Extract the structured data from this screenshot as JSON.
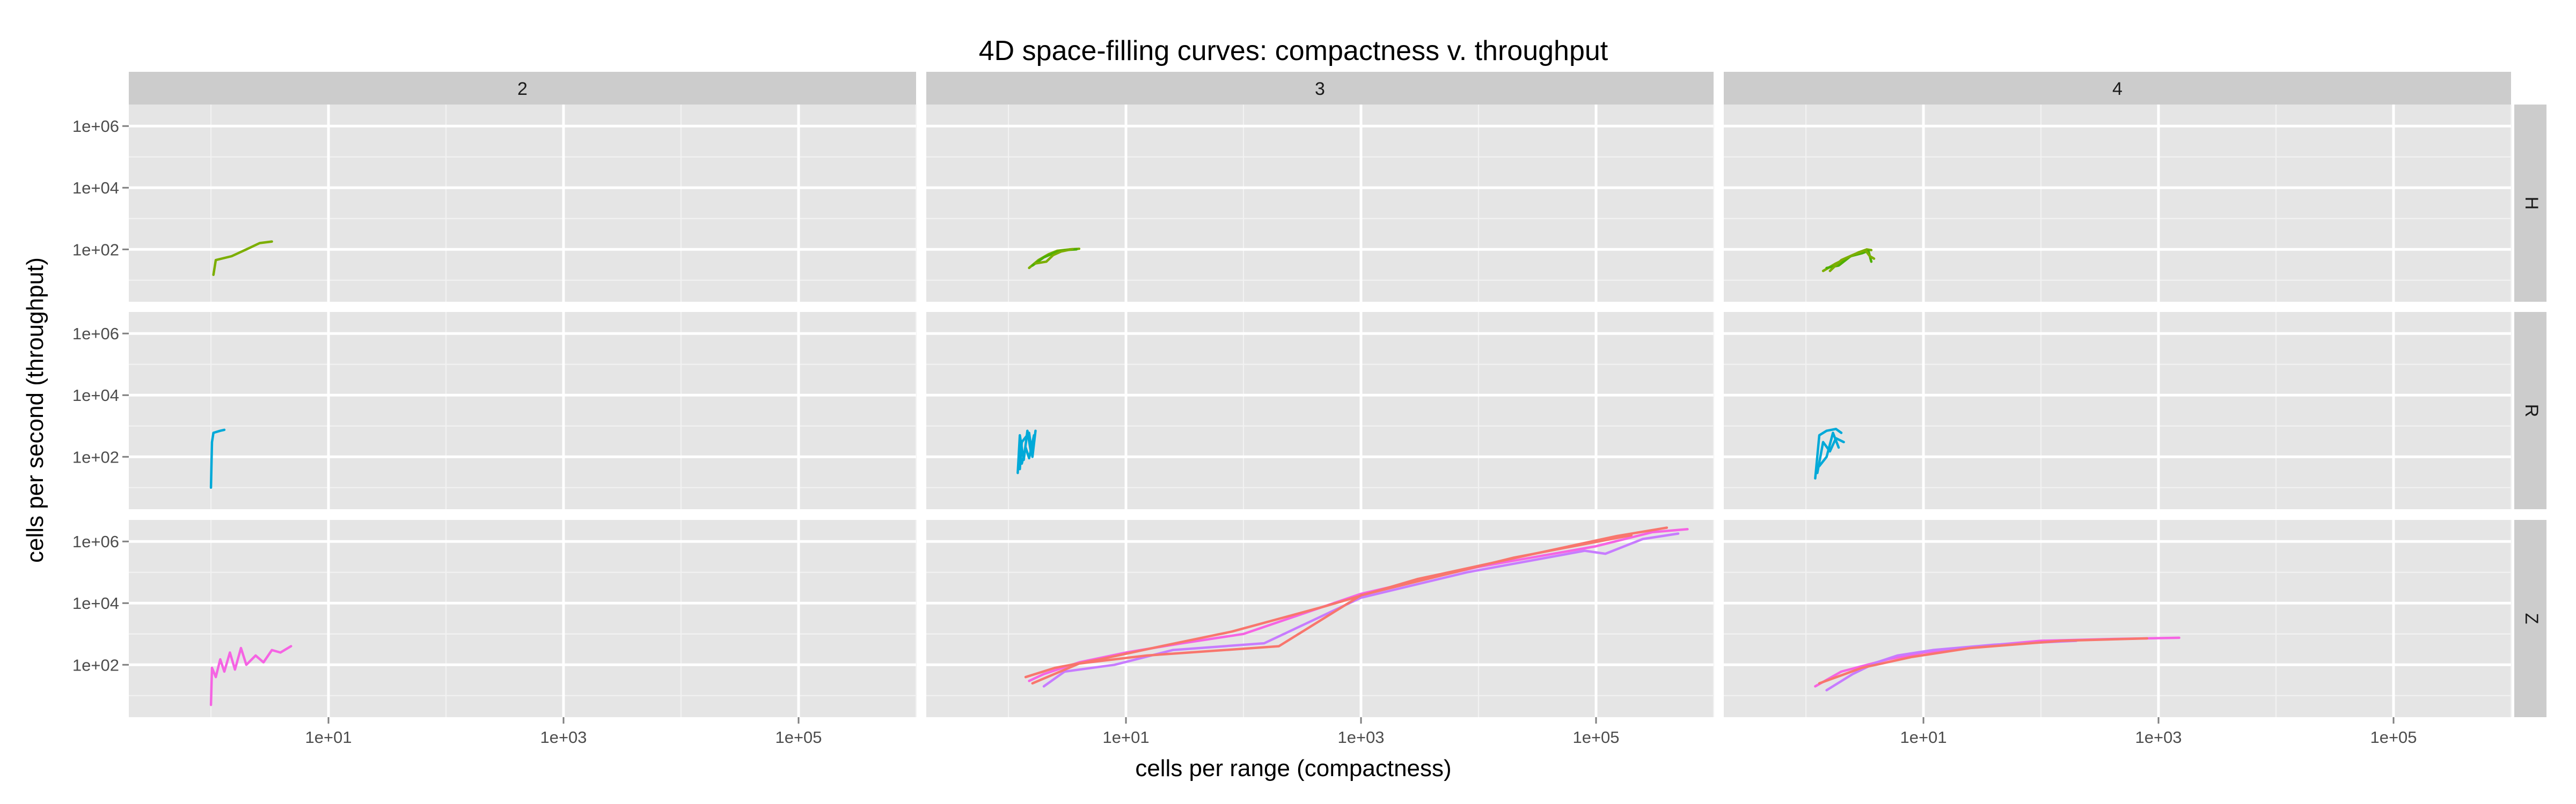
{
  "chart_data": {
    "type": "line",
    "title": "4D space-filling curves:  compactness v. throughput",
    "xlabel": "cells per range (compactness)",
    "ylabel": "cells per second (throughput)",
    "x_scale": "log10",
    "y_scale": "log10",
    "xlim": [
      0.2,
      1000000
    ],
    "ylim": [
      2,
      5000000
    ],
    "x_ticks": [
      10,
      1000,
      100000
    ],
    "x_tick_labels": [
      "1e+01",
      "1e+03",
      "1e+05"
    ],
    "y_ticks": [
      100,
      10000,
      1000000
    ],
    "y_tick_labels": [
      "1e+02",
      "1e+04",
      "1e+06"
    ],
    "grid": true,
    "legend": "none",
    "facet_columns": [
      "2",
      "3",
      "4"
    ],
    "facet_rows": [
      "H",
      "R",
      "Z"
    ],
    "colors": {
      "H": "#7cae00",
      "H_alt": "#4daf00",
      "R": "#00a9d8",
      "Z": "#f564e3",
      "Z_alt": "#c77cff",
      "Z_red": "#f8766d"
    },
    "panels": [
      {
        "col": "2",
        "row": "H",
        "series": [
          {
            "color": "H",
            "points": [
              [
                1.05,
                15
              ],
              [
                1.1,
                45
              ],
              [
                1.5,
                60
              ],
              [
                2.0,
                100
              ],
              [
                2.6,
                160
              ],
              [
                3.3,
                180
              ]
            ]
          }
        ]
      },
      {
        "col": "3",
        "row": "H",
        "series": [
          {
            "color": "H",
            "points": [
              [
                1.5,
                25
              ],
              [
                1.8,
                45
              ],
              [
                2.2,
                70
              ],
              [
                2.6,
                90
              ],
              [
                3.3,
                100
              ],
              [
                4.0,
                105
              ]
            ]
          },
          {
            "color": "H_alt",
            "points": [
              [
                1.6,
                30
              ],
              [
                2.0,
                55
              ],
              [
                2.5,
                80
              ],
              [
                3.0,
                95
              ],
              [
                3.8,
                100
              ]
            ]
          },
          {
            "color": "H",
            "points": [
              [
                1.7,
                35
              ],
              [
                2.1,
                40
              ],
              [
                2.4,
                65
              ],
              [
                2.8,
                85
              ],
              [
                3.5,
                102
              ]
            ]
          }
        ]
      },
      {
        "col": "4",
        "row": "H",
        "series": [
          {
            "color": "H",
            "points": [
              [
                1.4,
                20
              ],
              [
                1.8,
                35
              ],
              [
                2.3,
                55
              ],
              [
                2.8,
                80
              ],
              [
                3.3,
                100
              ],
              [
                3.6,
                95
              ]
            ]
          },
          {
            "color": "H_alt",
            "points": [
              [
                1.5,
                25
              ],
              [
                1.9,
                30
              ],
              [
                2.4,
                60
              ],
              [
                3.0,
                75
              ],
              [
                3.4,
                90
              ],
              [
                3.6,
                40
              ]
            ]
          },
          {
            "color": "H",
            "points": [
              [
                1.6,
                20
              ],
              [
                2.0,
                45
              ],
              [
                2.6,
                70
              ],
              [
                3.2,
                95
              ],
              [
                3.5,
                60
              ],
              [
                3.8,
                50
              ]
            ]
          }
        ]
      },
      {
        "col": "2",
        "row": "R",
        "series": [
          {
            "color": "R",
            "points": [
              [
                1.0,
                10
              ],
              [
                1.02,
                300
              ],
              [
                1.05,
                600
              ],
              [
                1.2,
                700
              ],
              [
                1.3,
                750
              ]
            ]
          }
        ]
      },
      {
        "col": "3",
        "row": "R",
        "series": [
          {
            "color": "R",
            "points": [
              [
                1.2,
                30
              ],
              [
                1.25,
                500
              ],
              [
                1.35,
                80
              ],
              [
                1.45,
                700
              ],
              [
                1.55,
                150
              ]
            ]
          },
          {
            "color": "R",
            "points": [
              [
                1.25,
                40
              ],
              [
                1.3,
                300
              ],
              [
                1.5,
                600
              ],
              [
                1.6,
                100
              ],
              [
                1.7,
                700
              ]
            ]
          },
          {
            "color": "R",
            "points": [
              [
                1.3,
                60
              ],
              [
                1.4,
                200
              ],
              [
                1.5,
                90
              ],
              [
                1.65,
                500
              ]
            ]
          }
        ]
      },
      {
        "col": "4",
        "row": "R",
        "series": [
          {
            "color": "R",
            "points": [
              [
                1.2,
                20
              ],
              [
                1.3,
                500
              ],
              [
                1.5,
                700
              ],
              [
                1.8,
                800
              ],
              [
                2.0,
                600
              ]
            ]
          },
          {
            "color": "R",
            "points": [
              [
                1.25,
                30
              ],
              [
                1.4,
                300
              ],
              [
                1.6,
                150
              ],
              [
                1.8,
                400
              ],
              [
                2.1,
                300
              ]
            ]
          },
          {
            "color": "R",
            "points": [
              [
                1.3,
                50
              ],
              [
                1.5,
                100
              ],
              [
                1.7,
                600
              ],
              [
                1.9,
                200
              ]
            ]
          }
        ]
      },
      {
        "col": "2",
        "row": "Z",
        "series": [
          {
            "color": "Z",
            "points": [
              [
                1.0,
                5
              ],
              [
                1.02,
                80
              ],
              [
                1.1,
                40
              ],
              [
                1.2,
                150
              ],
              [
                1.3,
                60
              ],
              [
                1.45,
                250
              ],
              [
                1.6,
                70
              ],
              [
                1.8,
                350
              ],
              [
                2.0,
                100
              ],
              [
                2.4,
                200
              ],
              [
                2.8,
                120
              ],
              [
                3.3,
                300
              ],
              [
                3.9,
                250
              ],
              [
                4.8,
                400
              ]
            ]
          }
        ]
      },
      {
        "col": "3",
        "row": "Z",
        "series": [
          {
            "color": "Z",
            "points": [
              [
                1.5,
                30
              ],
              [
                2,
                50
              ],
              [
                4,
                120
              ],
              [
                10,
                250
              ],
              [
                30,
                500
              ],
              [
                100,
                1000
              ],
              [
                1000,
                20000
              ],
              [
                10000,
                150000
              ],
              [
                100000,
                700000
              ],
              [
                300000,
                2000000
              ],
              [
                600000,
                2500000
              ]
            ]
          },
          {
            "color": "Z_red",
            "points": [
              [
                1.4,
                40
              ],
              [
                2.5,
                80
              ],
              [
                6,
                150
              ],
              [
                20,
                400
              ],
              [
                80,
                1200
              ],
              [
                500,
                8000
              ],
              [
                3000,
                60000
              ],
              [
                30000,
                400000
              ],
              [
                150000,
                1500000
              ],
              [
                400000,
                2800000
              ]
            ]
          },
          {
            "color": "Z_alt",
            "points": [
              [
                2,
                20
              ],
              [
                3,
                60
              ],
              [
                8,
                100
              ],
              [
                25,
                300
              ],
              [
                150,
                500
              ],
              [
                1000,
                15000
              ],
              [
                8000,
                100000
              ],
              [
                80000,
                500000
              ],
              [
                120000,
                400000
              ],
              [
                250000,
                1200000
              ],
              [
                500000,
                1800000
              ]
            ]
          },
          {
            "color": "Z_red",
            "points": [
              [
                1.6,
                25
              ],
              [
                4,
                110
              ],
              [
                15,
                200
              ],
              [
                200,
                400
              ],
              [
                1000,
                18000
              ],
              [
                20000,
                300000
              ],
              [
                200000,
                1600000
              ]
            ]
          }
        ]
      },
      {
        "col": "4",
        "row": "Z",
        "series": [
          {
            "color": "Z",
            "points": [
              [
                1.2,
                20
              ],
              [
                2,
                60
              ],
              [
                5,
                150
              ],
              [
                10,
                250
              ],
              [
                30,
                400
              ],
              [
                100,
                600
              ],
              [
                500,
                700
              ],
              [
                1500,
                750
              ]
            ]
          },
          {
            "color": "Z_alt",
            "points": [
              [
                1.5,
                15
              ],
              [
                2.5,
                50
              ],
              [
                4,
                120
              ],
              [
                6,
                200
              ],
              [
                12,
                300
              ],
              [
                40,
                450
              ],
              [
                200,
                600
              ]
            ]
          },
          {
            "color": "Z_red",
            "points": [
              [
                1.3,
                25
              ],
              [
                3,
                80
              ],
              [
                8,
                180
              ],
              [
                25,
                350
              ],
              [
                150,
                600
              ],
              [
                800,
                720
              ]
            ]
          }
        ]
      }
    ]
  }
}
